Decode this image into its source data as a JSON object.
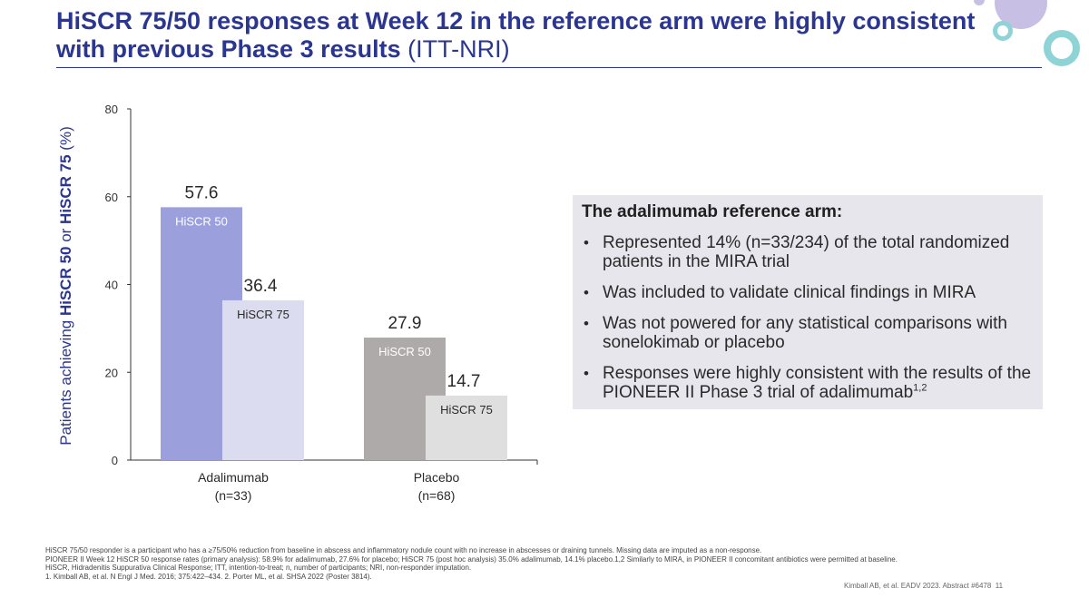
{
  "title": {
    "main": "HiSCR 75/50 responses at Week 12 in the reference arm were highly consistent with previous Phase 3 results",
    "suffix": "(ITT-NRI)"
  },
  "colors": {
    "title": "#2b3691",
    "hiscr50_adalimumab": "#9ba0dd",
    "hiscr75_adalimumab": "#dcdcf0",
    "hiscr50_placebo": "#aeaaa9",
    "hiscr75_placebo": "#e0dfdf",
    "info_box_bg": "#e7e6ec",
    "deco_purple": "#c8bfe4",
    "deco_teal": "#8ed3d6"
  },
  "chart_data": {
    "type": "bar",
    "categories": [
      "Adalimumab",
      "Placebo"
    ],
    "category_subtitles": [
      "(n=33)",
      "(n=68)"
    ],
    "series": [
      {
        "name": "HiSCR 50",
        "values": [
          57.6,
          27.9
        ]
      },
      {
        "name": "HiSCR 75",
        "values": [
          36.4,
          14.7
        ]
      }
    ],
    "data_labels": [
      [
        "57.6",
        "27.9"
      ],
      [
        "36.4",
        "14.7"
      ]
    ],
    "ylabel_parts": [
      "Patients achieving ",
      "HiSCR 50",
      " or ",
      "HiSCR 75",
      " (%)"
    ],
    "yticks": [
      0,
      20,
      40,
      60,
      80
    ],
    "ylim": [
      0,
      80
    ],
    "grid": false
  },
  "info_box": {
    "heading": "The adalimumab reference arm:",
    "bullets": [
      {
        "text": "Represented 14% (n=33/234) of the total randomized patients in the MIRA trial"
      },
      {
        "text": "Was included to validate clinical findings in MIRA"
      },
      {
        "text": "Was not powered for any statistical comparisons with sonelokimab or placebo"
      },
      {
        "text": "Responses were highly consistent with the results of the PIONEER II Phase 3 trial of adalimumab",
        "sup": "1,2"
      }
    ]
  },
  "footnotes": [
    "HiSCR 75/50 responder is a participant who has a ≥75/50% reduction from baseline in abscess and inflammatory nodule count with no increase in abscesses or draining tunnels. Missing data are imputed as a non-response.",
    "PIONEER II Week 12 HiSCR 50 response rates (primary analysis): 58.9% for adalimumab, 27.6% for placebo; HiSCR 75 (post hoc analysis) 35.0% adalimumab, 14.1% placebo.1,2 Similarly to MIRA, in PIONEER II concomitant antibiotics were permitted at baseline.",
    "HiSCR, Hidradenitis Suppurativa Clinical Response; ITT, intention-to-treat; n, number of participants; NRI, non-responder imputation.",
    "1. Kimball AB, et al. N Engl J Med. 2016; 375:422–434. 2. Porter ML, et al. SHSA 2022 (Poster 3814)."
  ],
  "citation": "Kimball AB, et al. EADV 2023. Abstract #6478",
  "page_number": "11"
}
